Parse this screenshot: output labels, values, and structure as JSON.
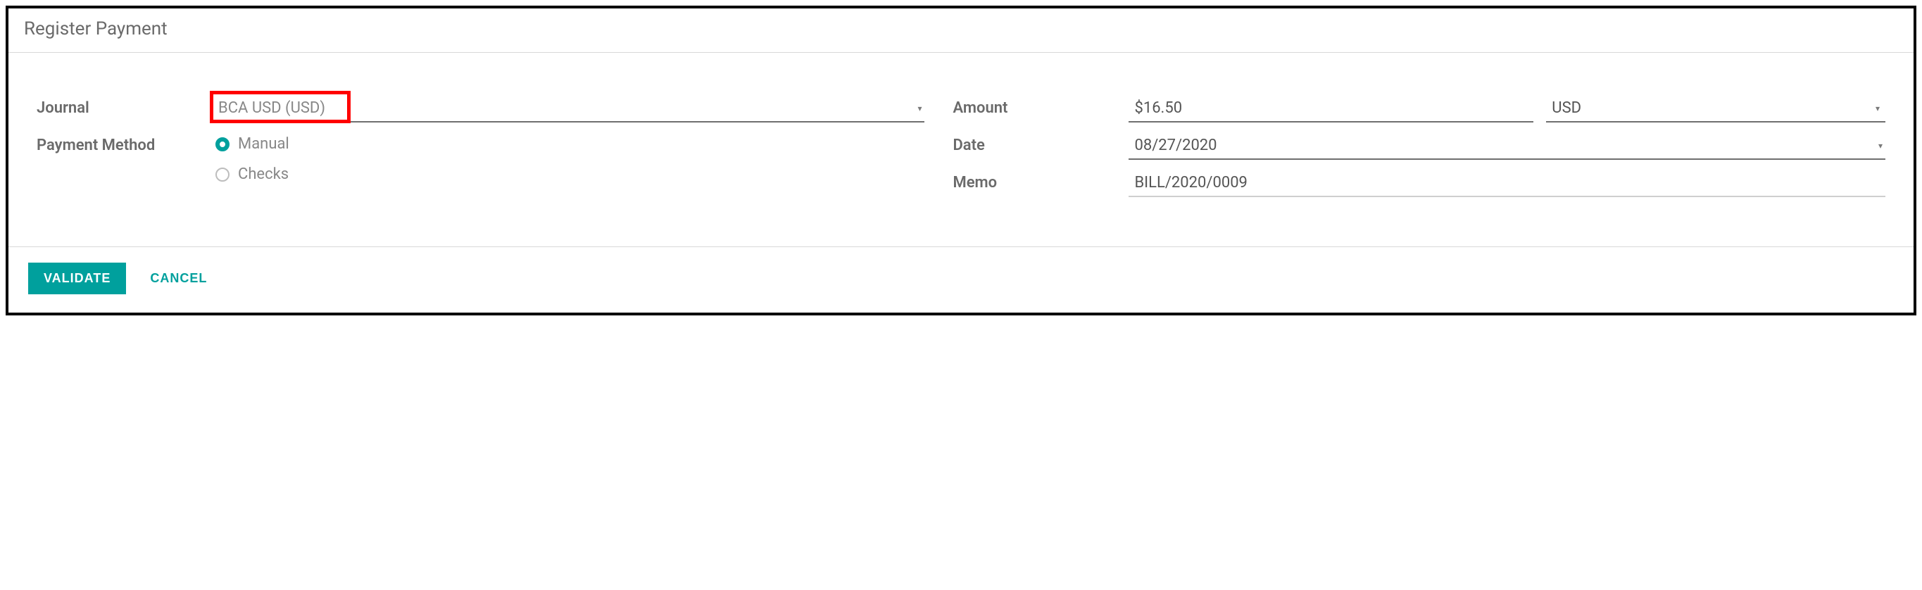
{
  "dialog": {
    "title": "Register Payment"
  },
  "form": {
    "journal": {
      "label": "Journal",
      "value": "BCA USD (USD)",
      "highlighted": true
    },
    "payment_method": {
      "label": "Payment Method",
      "options": [
        {
          "label": "Manual",
          "selected": true
        },
        {
          "label": "Checks",
          "selected": false
        }
      ]
    },
    "amount": {
      "label": "Amount",
      "value": "$16.50",
      "currency": "USD"
    },
    "date": {
      "label": "Date",
      "value": "08/27/2020"
    },
    "memo": {
      "label": "Memo",
      "value": "BILL/2020/0009"
    }
  },
  "buttons": {
    "validate": "VALIDATE",
    "cancel": "CANCEL"
  },
  "colors": {
    "accent": "#00a09d",
    "highlight_border": "#ff0000",
    "text_muted": "#6a6a6a",
    "text_value": "#555555",
    "underline": "#6f6f6f",
    "divider": "#d9d9d9",
    "outer_border": "#000000"
  }
}
